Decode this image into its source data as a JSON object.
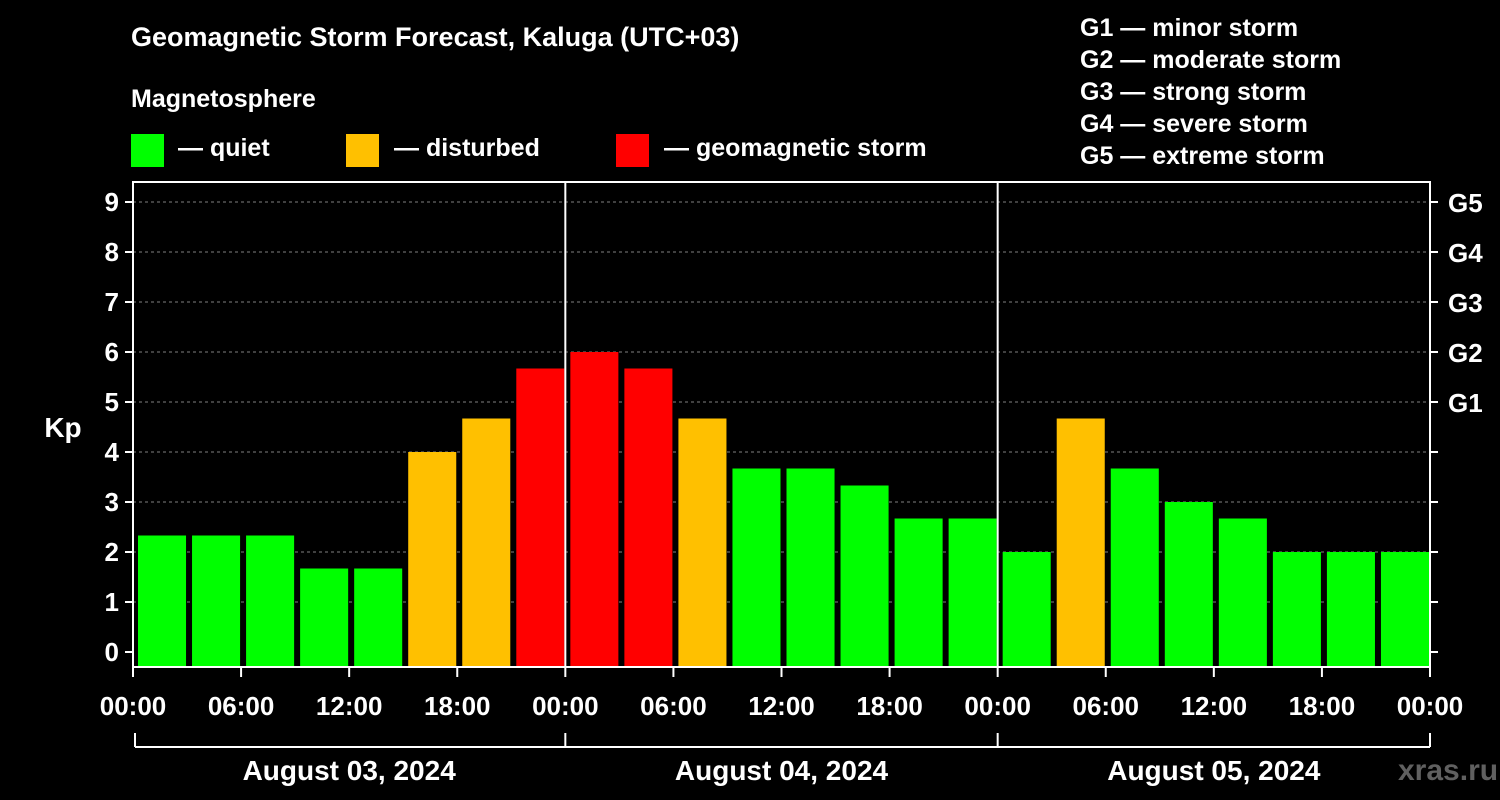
{
  "title": "Geomagnetic Storm Forecast, Kaluga (UTC+03)",
  "subtitle": "Magnetosphere",
  "legend": [
    {
      "label": "— quiet",
      "color": "#00ff00"
    },
    {
      "label": "— disturbed",
      "color": "#ffc000"
    },
    {
      "label": "— geomagnetic storm",
      "color": "#ff0000"
    }
  ],
  "g_scale": [
    "G1 — minor storm",
    "G2 — moderate storm",
    "G3 — strong storm",
    "G4 — severe storm",
    "G5 — extreme storm"
  ],
  "watermark": "xras.ru",
  "chart_data": {
    "type": "bar",
    "ylabel": "Kp",
    "ylim": [
      0,
      9
    ],
    "yticks": [
      0,
      1,
      2,
      3,
      4,
      5,
      6,
      7,
      8,
      9
    ],
    "right_ticks": [
      {
        "value": 5,
        "label": "G1"
      },
      {
        "value": 6,
        "label": "G2"
      },
      {
        "value": 7,
        "label": "G3"
      },
      {
        "value": 8,
        "label": "G4"
      },
      {
        "value": 9,
        "label": "G5"
      }
    ],
    "xtick_labels": [
      "00:00",
      "06:00",
      "12:00",
      "18:00",
      "00:00",
      "06:00",
      "12:00",
      "18:00",
      "00:00",
      "06:00",
      "12:00",
      "18:00",
      "00:00"
    ],
    "days": [
      "August 03, 2024",
      "August 04, 2024",
      "August 05, 2024"
    ],
    "interval_hours": 3,
    "values": [
      2.33,
      2.33,
      2.33,
      1.67,
      1.67,
      4.0,
      4.67,
      5.67,
      6.0,
      5.67,
      4.67,
      3.67,
      3.67,
      3.33,
      2.67,
      2.67,
      2.0,
      4.67,
      3.67,
      3.0,
      2.67,
      2.0,
      2.0,
      2.0
    ],
    "categories": [
      "quiet",
      "quiet",
      "quiet",
      "quiet",
      "quiet",
      "disturbed",
      "disturbed",
      "storm",
      "storm",
      "storm",
      "disturbed",
      "quiet",
      "quiet",
      "quiet",
      "quiet",
      "quiet",
      "quiet",
      "disturbed",
      "quiet",
      "quiet",
      "quiet",
      "quiet",
      "quiet",
      "quiet"
    ],
    "colors": {
      "quiet": "#00ff00",
      "disturbed": "#ffc000",
      "storm": "#ff0000"
    },
    "grid": true
  }
}
